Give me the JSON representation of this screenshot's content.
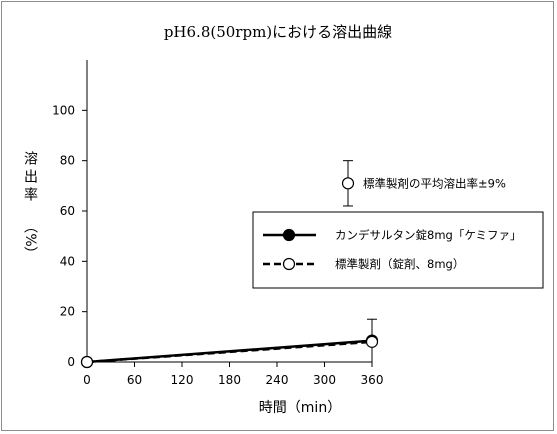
{
  "chart_data": {
    "type": "line",
    "title": "pH6.8(50rpm)における溶出曲線",
    "xlabel": "時間（min）",
    "ylabel_main": "溶出率",
    "ylabel_unit": "（%）",
    "xlim": [
      0,
      360
    ],
    "ylim": [
      0,
      120
    ],
    "xticks": [
      0,
      60,
      120,
      180,
      240,
      300,
      360
    ],
    "yticks": [
      0,
      20,
      40,
      60,
      80,
      100
    ],
    "grid": false,
    "legend_position": "right",
    "series": [
      {
        "name": "カンデサルタン錠8mg「ケミファ」",
        "x": [
          0,
          360
        ],
        "y": [
          0,
          8.5
        ],
        "style": "solid",
        "marker": "filled-circle",
        "color": "#000000"
      },
      {
        "name": "標準製剤（錠剤、8mg）",
        "x": [
          0,
          360
        ],
        "y": [
          0,
          8
        ],
        "style": "dashed",
        "marker": "open-circle",
        "color": "#000000",
        "error_bars": [
          null,
          9
        ]
      }
    ],
    "reference_note": {
      "label": "標準製剤の平均溶出率±9%",
      "mean": 71,
      "error": 9
    }
  }
}
